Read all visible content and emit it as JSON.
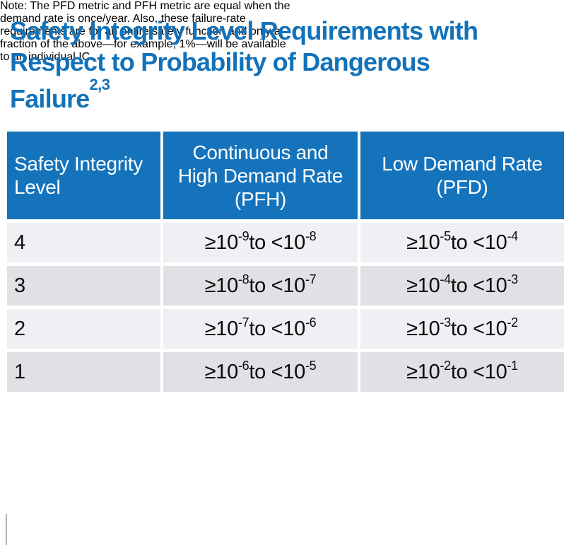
{
  "title": {
    "line1": "Safety Integrity Level Requirements with",
    "line2": "Respect to Probability of Dangerous",
    "line3_text": "Failure",
    "line3_sup": "2,3"
  },
  "colors": {
    "title_blue": "#1272b9",
    "header_blue": "#1473bb",
    "row_light": "#eef0f3",
    "row_dark": "#dfe1e4"
  },
  "table": {
    "headers": {
      "col1_line1": "Safety Integrity",
      "col1_line2": "Level",
      "col2_line1": "Continuous and",
      "col2_line2": "High Demand Rate",
      "col2_line3": "(PFH)",
      "col3_line1": "Low Demand Rate",
      "col3_line2": "(PFD)"
    },
    "rows": [
      {
        "level": "4",
        "pfh": {
          "b1": "≥10",
          "e1": "-9",
          "b2": " to <10",
          "e2": "-8"
        },
        "pfd": {
          "b1": "≥10",
          "e1": "-5",
          "b2": " to <10",
          "e2": "-4"
        }
      },
      {
        "level": "3",
        "pfh": {
          "b1": "≥10",
          "e1": "-8",
          "b2": " to <10",
          "e2": "-7"
        },
        "pfd": {
          "b1": "≥10",
          "e1": "-4",
          "b2": " to <10",
          "e2": "-3"
        }
      },
      {
        "level": "2",
        "pfh": {
          "b1": "≥10",
          "e1": "-7",
          "b2": " to <10",
          "e2": "-6"
        },
        "pfd": {
          "b1": "≥10",
          "e1": "-3",
          "b2": " to <10",
          "e2": "-2"
        }
      },
      {
        "level": "1",
        "pfh": {
          "b1": "≥10",
          "e1": "-6",
          "b2": " to <10",
          "e2": "-5"
        },
        "pfd": {
          "b1": "≥10",
          "e1": "-2",
          "b2": " to <10",
          "e2": "-1"
        }
      }
    ]
  },
  "note": {
    "line1": "Note: The PFD metric and PFH metric are equal when the",
    "line2": "demand rate is once/year. Also, these failure-rate",
    "line3": "requirements are for an entire safety function and only a",
    "line4": "fraction of the above—for example, 1%—will be available",
    "line5": "to an individual IC."
  }
}
